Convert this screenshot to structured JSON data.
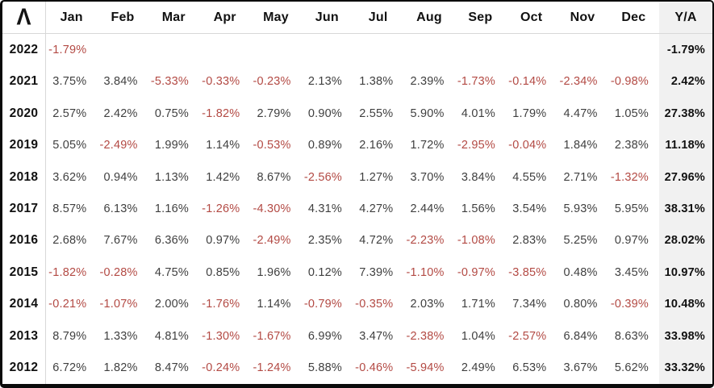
{
  "logo": {
    "glyph": "Λ",
    "icon_name": "lambda-logo-icon"
  },
  "colors": {
    "negative_text": "#b34a44",
    "positive_text": "#3f3f3f",
    "heading_text": "#111111",
    "ya_column_bg": "#f1f1f1",
    "grid_line": "#d8d8d8",
    "outer_border": "#0a0a0a",
    "background": "#ffffff"
  },
  "table": {
    "month_headers": [
      "Jan",
      "Feb",
      "Mar",
      "Apr",
      "May",
      "Jun",
      "Jul",
      "Aug",
      "Sep",
      "Oct",
      "Nov",
      "Dec"
    ],
    "ya_header": "Y/A",
    "rows": [
      {
        "year": "2022",
        "monthly": [
          "-1.79%",
          "",
          "",
          "",
          "",
          "",
          "",
          "",
          "",
          "",
          "",
          ""
        ],
        "ya": "-1.79%"
      },
      {
        "year": "2021",
        "monthly": [
          "3.75%",
          "3.84%",
          "-5.33%",
          "-0.33%",
          "-0.23%",
          "2.13%",
          "1.38%",
          "2.39%",
          "-1.73%",
          "-0.14%",
          "-2.34%",
          "-0.98%"
        ],
        "ya": "2.42%"
      },
      {
        "year": "2020",
        "monthly": [
          "2.57%",
          "2.42%",
          "0.75%",
          "-1.82%",
          "2.79%",
          "0.90%",
          "2.55%",
          "5.90%",
          "4.01%",
          "1.79%",
          "4.47%",
          "1.05%"
        ],
        "ya": "27.38%"
      },
      {
        "year": "2019",
        "monthly": [
          "5.05%",
          "-2.49%",
          "1.99%",
          "1.14%",
          "-0.53%",
          "0.89%",
          "2.16%",
          "1.72%",
          "-2.95%",
          "-0.04%",
          "1.84%",
          "2.38%"
        ],
        "ya": "11.18%"
      },
      {
        "year": "2018",
        "monthly": [
          "3.62%",
          "0.94%",
          "1.13%",
          "1.42%",
          "8.67%",
          "-2.56%",
          "1.27%",
          "3.70%",
          "3.84%",
          "4.55%",
          "2.71%",
          "-1.32%"
        ],
        "ya": "27.96%"
      },
      {
        "year": "2017",
        "monthly": [
          "8.57%",
          "6.13%",
          "1.16%",
          "-1.26%",
          "-4.30%",
          "4.31%",
          "4.27%",
          "2.44%",
          "1.56%",
          "3.54%",
          "5.93%",
          "5.95%"
        ],
        "ya": "38.31%"
      },
      {
        "year": "2016",
        "monthly": [
          "2.68%",
          "7.67%",
          "6.36%",
          "0.97%",
          "-2.49%",
          "2.35%",
          "4.72%",
          "-2.23%",
          "-1.08%",
          "2.83%",
          "5.25%",
          "0.97%"
        ],
        "ya": "28.02%"
      },
      {
        "year": "2015",
        "monthly": [
          "-1.82%",
          "-0.28%",
          "4.75%",
          "0.85%",
          "1.96%",
          "0.12%",
          "7.39%",
          "-1.10%",
          "-0.97%",
          "-3.85%",
          "0.48%",
          "3.45%"
        ],
        "ya": "10.97%"
      },
      {
        "year": "2014",
        "monthly": [
          "-0.21%",
          "-1.07%",
          "2.00%",
          "-1.76%",
          "1.14%",
          "-0.79%",
          "-0.35%",
          "2.03%",
          "1.71%",
          "7.34%",
          "0.80%",
          "-0.39%"
        ],
        "ya": "10.48%"
      },
      {
        "year": "2013",
        "monthly": [
          "8.79%",
          "1.33%",
          "4.81%",
          "-1.30%",
          "-1.67%",
          "6.99%",
          "3.47%",
          "-2.38%",
          "1.04%",
          "-2.57%",
          "6.84%",
          "8.63%"
        ],
        "ya": "33.98%"
      },
      {
        "year": "2012",
        "monthly": [
          "6.72%",
          "1.82%",
          "8.47%",
          "-0.24%",
          "-1.24%",
          "5.88%",
          "-0.46%",
          "-5.94%",
          "2.49%",
          "6.53%",
          "3.67%",
          "5.62%"
        ],
        "ya": "33.32%"
      }
    ]
  }
}
